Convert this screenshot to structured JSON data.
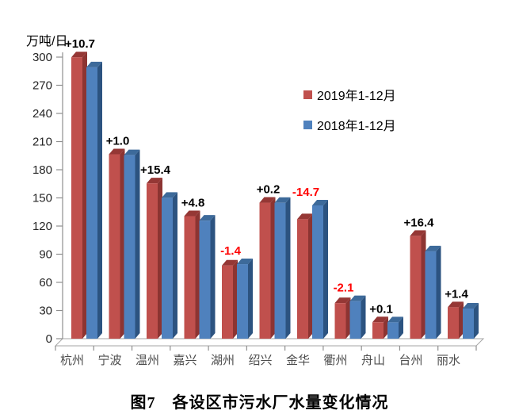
{
  "figure": {
    "caption": "图7　各设区市污水厂水量变化情况"
  },
  "chart_data": {
    "type": "bar",
    "title": "图7　各设区市污水厂水量变化情况",
    "unit_label": "万吨/日",
    "categories": [
      "杭州",
      "宁波",
      "温州",
      "嘉兴",
      "湖州",
      "绍兴",
      "金华",
      "衢州",
      "舟山",
      "台州",
      "丽水"
    ],
    "series": [
      {
        "name": "2019年1-12月",
        "color": "#C0504D",
        "side_color": "#8C3432",
        "top_color": "#953735",
        "values": [
          299.8,
          196.5,
          165.5,
          130.6,
          78.0,
          144.9,
          127.3,
          37.9,
          17.5,
          109.5,
          33.5
        ]
      },
      {
        "name": "2018年1-12月",
        "color": "#4F81BD",
        "side_color": "#2C5380",
        "top_color": "#3D6A9A",
        "values": [
          289.1,
          195.5,
          150.1,
          125.8,
          79.4,
          144.7,
          142.0,
          40.0,
          17.4,
          93.1,
          32.1
        ]
      }
    ],
    "diff_labels": [
      "+10.7",
      "+1.0",
      "+15.4",
      "+4.8",
      "-1.4",
      "+0.2",
      "-14.7",
      "-2.1",
      "+0.1",
      "+16.4",
      "+1.4"
    ],
    "diff_label_colors": {
      "positive": "#000000",
      "negative": "#FF0000"
    },
    "ylim": [
      0,
      300
    ],
    "ytick_step": 30,
    "ylabel": "万吨/日",
    "xlabel": "",
    "grid": false,
    "legend_position": "inside-upper-right",
    "axis_text_color": "#262626",
    "category_text_color": "#4d4d4d",
    "axis_line_color": "#8f8f8f"
  }
}
